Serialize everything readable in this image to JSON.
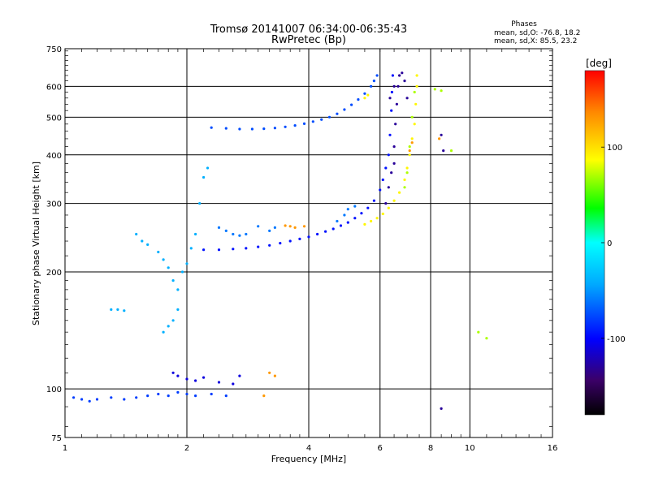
{
  "chart_data": {
    "type": "scatter",
    "title": "Tromsø 20141007 06:34:00-06:35:43",
    "subtitle": "RwPretec (Bp)",
    "xlabel": "Frequency [MHz]",
    "ylabel": "Stationary phase Virtual Height [km]",
    "x_scale": "log2",
    "y_scale": "log",
    "xlim": [
      1,
      16
    ],
    "ylim": [
      75,
      750
    ],
    "x_ticks": [
      1,
      2,
      4,
      6,
      8,
      10,
      16
    ],
    "x_tick_labels": [
      "1",
      "2",
      "4",
      "6",
      "8",
      "10",
      "16"
    ],
    "y_ticks": [
      75,
      100,
      200,
      300,
      400,
      500,
      600,
      750
    ],
    "y_tick_labels": [
      "75",
      "100",
      "200",
      "300",
      "400",
      "500",
      "600",
      "750"
    ],
    "grid": true,
    "phase_info": {
      "heading": "Phases",
      "line_o": "mean, sd,O: -76.8, 18.2",
      "line_x": "mean, sd,X:  85.5, 23.2"
    },
    "colorbar": {
      "label": "[deg]",
      "range": [
        -180,
        180
      ],
      "ticks": [
        100,
        0,
        -100
      ],
      "tick_labels": [
        "100",
        "0",
        "-100"
      ]
    },
    "series": [
      {
        "phase": -80,
        "points": [
          [
            1.05,
            95
          ],
          [
            1.1,
            94
          ],
          [
            1.15,
            93
          ],
          [
            1.2,
            94
          ],
          [
            1.3,
            95
          ],
          [
            1.4,
            94
          ],
          [
            1.5,
            95
          ],
          [
            1.6,
            96
          ],
          [
            1.7,
            97
          ],
          [
            1.8,
            96
          ],
          [
            1.9,
            98
          ],
          [
            2.0,
            97
          ],
          [
            2.1,
            96
          ],
          [
            2.3,
            97
          ],
          [
            2.5,
            96
          ]
        ]
      },
      {
        "phase": -110,
        "points": [
          [
            1.85,
            110
          ],
          [
            1.9,
            108
          ],
          [
            2.0,
            106
          ],
          [
            2.1,
            105
          ],
          [
            2.2,
            107
          ],
          [
            2.4,
            104
          ],
          [
            2.6,
            103
          ],
          [
            2.7,
            108
          ]
        ]
      },
      {
        "phase": -40,
        "points": [
          [
            1.3,
            160
          ],
          [
            1.35,
            160
          ],
          [
            1.4,
            159
          ],
          [
            1.5,
            250
          ],
          [
            1.55,
            240
          ],
          [
            1.6,
            235
          ],
          [
            1.7,
            225
          ],
          [
            1.75,
            215
          ],
          [
            1.8,
            205
          ],
          [
            1.85,
            190
          ],
          [
            1.9,
            180
          ],
          [
            1.95,
            200
          ],
          [
            2.0,
            210
          ],
          [
            2.05,
            230
          ],
          [
            2.1,
            250
          ],
          [
            2.15,
            300
          ],
          [
            2.2,
            350
          ],
          [
            2.25,
            370
          ],
          [
            1.75,
            140
          ],
          [
            1.8,
            145
          ],
          [
            1.85,
            150
          ],
          [
            1.9,
            160
          ]
        ]
      },
      {
        "phase": -95,
        "points": [
          [
            2.2,
            228
          ],
          [
            2.4,
            228
          ],
          [
            2.6,
            229
          ],
          [
            2.8,
            230
          ],
          [
            3.0,
            232
          ],
          [
            3.2,
            234
          ],
          [
            3.4,
            237
          ],
          [
            3.6,
            240
          ],
          [
            3.8,
            243
          ],
          [
            4.0,
            246
          ],
          [
            4.2,
            250
          ],
          [
            4.4,
            254
          ],
          [
            4.6,
            258
          ],
          [
            4.8,
            263
          ],
          [
            5.0,
            268
          ],
          [
            5.2,
            275
          ],
          [
            5.4,
            283
          ],
          [
            5.6,
            292
          ],
          [
            5.8,
            305
          ],
          [
            6.0,
            325
          ],
          [
            6.1,
            345
          ],
          [
            6.2,
            370
          ],
          [
            6.3,
            400
          ],
          [
            6.35,
            450
          ],
          [
            6.4,
            520
          ],
          [
            6.42,
            580
          ],
          [
            6.45,
            640
          ]
        ]
      },
      {
        "phase": -75,
        "points": [
          [
            2.3,
            470
          ],
          [
            2.5,
            468
          ],
          [
            2.7,
            466
          ],
          [
            2.9,
            466
          ],
          [
            3.1,
            467
          ],
          [
            3.3,
            469
          ],
          [
            3.5,
            472
          ],
          [
            3.7,
            476
          ],
          [
            3.9,
            481
          ],
          [
            4.1,
            487
          ],
          [
            4.3,
            493
          ],
          [
            4.5,
            500
          ],
          [
            4.7,
            510
          ],
          [
            4.9,
            523
          ],
          [
            5.1,
            538
          ],
          [
            5.3,
            555
          ],
          [
            5.5,
            575
          ],
          [
            5.7,
            600
          ],
          [
            5.8,
            620
          ],
          [
            5.9,
            640
          ]
        ]
      },
      {
        "phase": -60,
        "points": [
          [
            2.4,
            260
          ],
          [
            2.5,
            255
          ],
          [
            2.6,
            250
          ],
          [
            2.7,
            248
          ],
          [
            2.8,
            250
          ],
          [
            3.0,
            262
          ],
          [
            3.2,
            255
          ],
          [
            3.3,
            260
          ],
          [
            4.7,
            270
          ],
          [
            4.9,
            280
          ],
          [
            5.0,
            290
          ],
          [
            5.2,
            295
          ]
        ]
      },
      {
        "phase": -130,
        "points": [
          [
            6.2,
            300
          ],
          [
            6.3,
            330
          ],
          [
            6.4,
            360
          ],
          [
            6.5,
            420
          ],
          [
            6.55,
            480
          ],
          [
            6.6,
            540
          ],
          [
            6.65,
            600
          ],
          [
            6.7,
            640
          ],
          [
            6.8,
            650
          ],
          [
            6.9,
            620
          ],
          [
            7.0,
            560
          ],
          [
            6.5,
            600
          ],
          [
            6.35,
            560
          ],
          [
            6.5,
            380
          ],
          [
            8.5,
            450
          ],
          [
            8.6,
            410
          ],
          [
            8.5,
            89
          ]
        ]
      },
      {
        "phase": 90,
        "points": [
          [
            5.5,
            265
          ],
          [
            5.7,
            270
          ],
          [
            5.9,
            275
          ],
          [
            6.1,
            282
          ],
          [
            6.3,
            292
          ],
          [
            6.5,
            305
          ],
          [
            6.7,
            320
          ],
          [
            6.9,
            345
          ],
          [
            7.0,
            370
          ],
          [
            7.1,
            400
          ],
          [
            7.2,
            440
          ],
          [
            7.3,
            480
          ],
          [
            7.35,
            540
          ],
          [
            7.4,
            600
          ],
          [
            7.4,
            640
          ],
          [
            5.5,
            560
          ],
          [
            5.6,
            570
          ]
        ]
      },
      {
        "phase": 70,
        "points": [
          [
            6.9,
            330
          ],
          [
            7.0,
            360
          ],
          [
            7.1,
            420
          ],
          [
            7.2,
            500
          ],
          [
            7.3,
            580
          ],
          [
            8.2,
            590
          ],
          [
            8.5,
            585
          ],
          [
            9.0,
            410
          ],
          [
            10.5,
            140
          ],
          [
            11.0,
            135
          ]
        ]
      },
      {
        "phase": 130,
        "points": [
          [
            3.2,
            110
          ],
          [
            3.3,
            108
          ],
          [
            3.5,
            263
          ],
          [
            3.6,
            262
          ],
          [
            3.7,
            260
          ],
          [
            3.9,
            262
          ],
          [
            7.1,
            410
          ],
          [
            7.2,
            430
          ],
          [
            8.4,
            440
          ],
          [
            3.1,
            96
          ]
        ]
      }
    ]
  }
}
